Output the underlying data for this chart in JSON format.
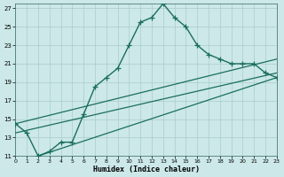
{
  "xlabel": "Humidex (Indice chaleur)",
  "bg_color": "#cce8e8",
  "grid_color": "#aacccc",
  "line_color": "#1a6e5e",
  "xlim": [
    0,
    23
  ],
  "ylim": [
    11,
    27.5
  ],
  "xticks": [
    0,
    1,
    2,
    3,
    4,
    5,
    6,
    7,
    8,
    9,
    10,
    11,
    12,
    13,
    14,
    15,
    16,
    17,
    18,
    19,
    20,
    21,
    22,
    23
  ],
  "yticks": [
    11,
    13,
    15,
    17,
    19,
    21,
    23,
    25,
    27
  ],
  "curve_x": [
    0,
    1,
    2,
    3,
    4,
    5,
    6,
    7,
    8,
    9,
    10,
    11,
    12,
    13,
    14,
    15,
    16,
    17,
    18,
    19,
    20,
    21,
    22,
    23
  ],
  "curve_y": [
    14.5,
    13.5,
    11.0,
    11.5,
    12.5,
    12.5,
    15.5,
    18.5,
    19.5,
    20.5,
    23.0,
    25.5,
    26.0,
    27.5,
    26.0,
    25.0,
    23.0,
    22.0,
    21.5,
    21.0,
    21.0,
    21.0,
    20.0,
    19.5
  ],
  "straight_lines": [
    {
      "x": [
        0,
        23
      ],
      "y": [
        14.5,
        21.5
      ]
    },
    {
      "x": [
        0,
        23
      ],
      "y": [
        13.5,
        20.0
      ]
    },
    {
      "x": [
        2,
        23
      ],
      "y": [
        11.0,
        19.5
      ]
    }
  ]
}
